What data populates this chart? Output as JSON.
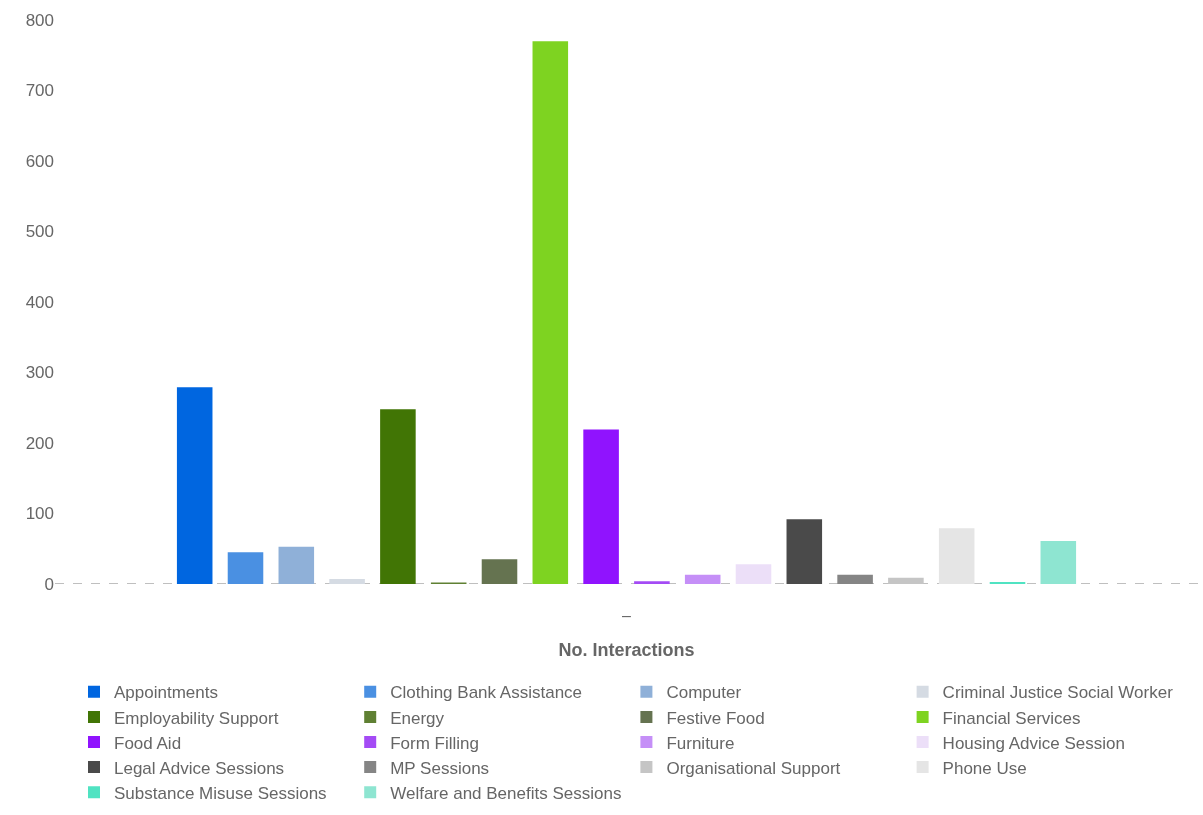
{
  "chart_data": {
    "type": "bar",
    "xlabel": "No. Interactions",
    "categories": [
      "–"
    ],
    "ylim": [
      0,
      800
    ],
    "yticks": [
      0,
      100,
      200,
      300,
      400,
      500,
      600,
      700,
      800
    ],
    "grid": false,
    "legend": "bottom",
    "series": [
      {
        "name": "Appointments",
        "color": "#0066e0",
        "values": [
          279
        ]
      },
      {
        "name": "Clothing Bank Assistance",
        "color": "#4a90e2",
        "values": [
          45
        ]
      },
      {
        "name": "Computer",
        "color": "#8fb0d8",
        "values": [
          53
        ]
      },
      {
        "name": "Criminal Justice Social Worker",
        "color": "#d5dbe3",
        "values": [
          7
        ]
      },
      {
        "name": "Employability Support",
        "color": "#417505",
        "values": [
          248
        ]
      },
      {
        "name": "Energy",
        "color": "#5f8033",
        "values": [
          2
        ]
      },
      {
        "name": "Festive Food",
        "color": "#657350",
        "values": [
          35
        ]
      },
      {
        "name": "Financial Services",
        "color": "#7ed321",
        "values": [
          770
        ]
      },
      {
        "name": "Food Aid",
        "color": "#9013fe",
        "values": [
          219
        ]
      },
      {
        "name": "Form Filling",
        "color": "#a44bf5",
        "values": [
          4
        ]
      },
      {
        "name": "Furniture",
        "color": "#c58ff7",
        "values": [
          13
        ]
      },
      {
        "name": "Housing Advice Session",
        "color": "#ecdff8",
        "values": [
          28
        ]
      },
      {
        "name": "Legal Advice Sessions",
        "color": "#4a4a4a",
        "values": [
          92
        ]
      },
      {
        "name": "MP Sessions",
        "color": "#858585",
        "values": [
          13
        ]
      },
      {
        "name": "Organisational Support",
        "color": "#c5c5c5",
        "values": [
          9
        ]
      },
      {
        "name": "Phone Use",
        "color": "#e5e5e5",
        "values": [
          79
        ]
      },
      {
        "name": "Substance Misuse Sessions",
        "color": "#50e3c2",
        "values": [
          3
        ]
      },
      {
        "name": "Welfare and Benefits Sessions",
        "color": "#8ee5d1",
        "values": [
          61
        ]
      }
    ]
  }
}
